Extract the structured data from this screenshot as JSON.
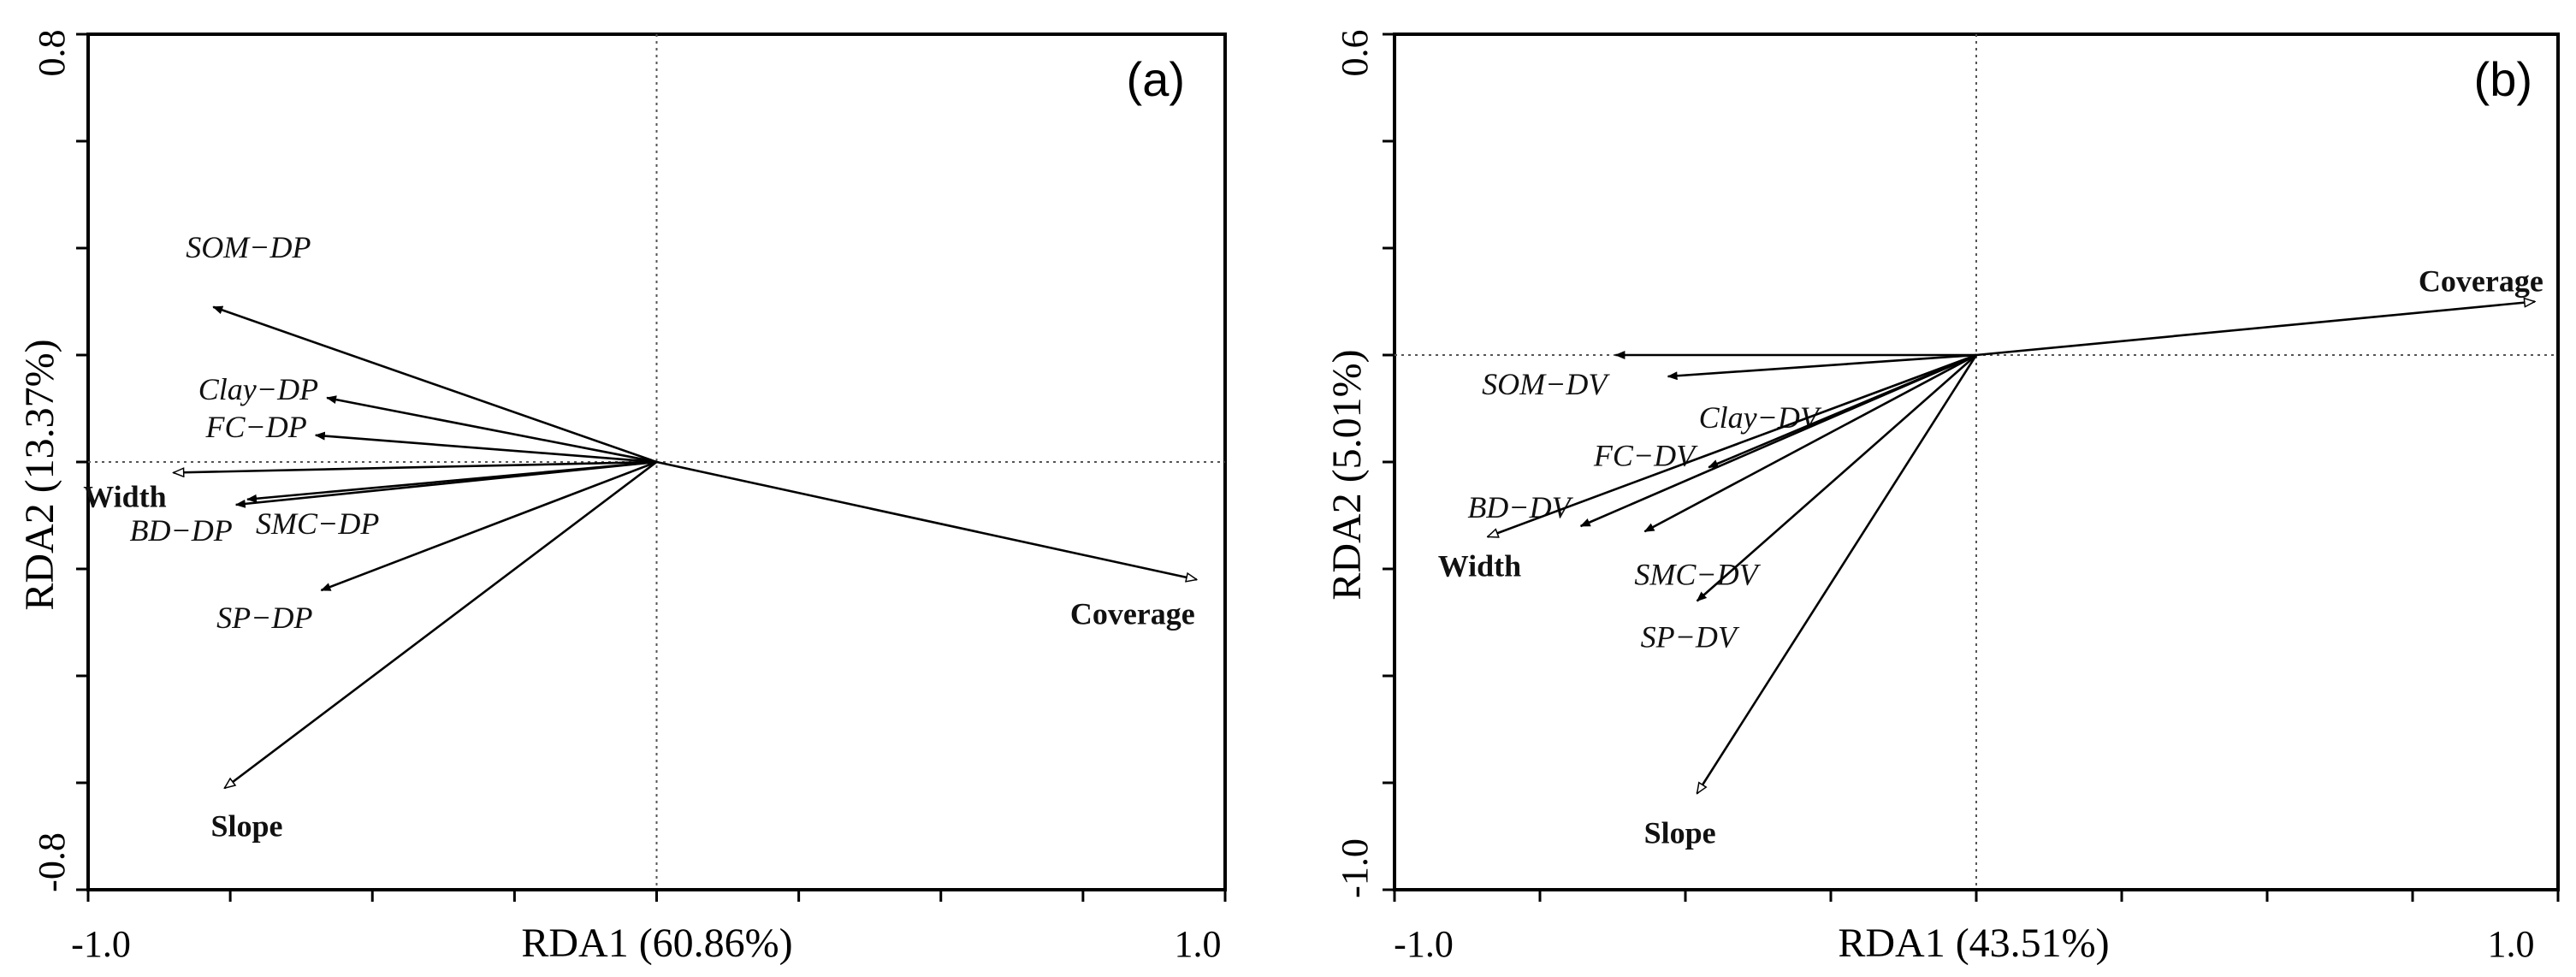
{
  "chart_data": [
    {
      "type": "scatter",
      "panel_label": "(a)",
      "xlabel": "RDA1 (60.86%)",
      "ylabel": "RDA2 (13.37%)",
      "xlim": [
        -1.0,
        1.0
      ],
      "ylim": [
        -0.8,
        0.8
      ],
      "x_tick_labels": [
        "-1.0",
        "1.0"
      ],
      "y_tick_labels": [
        "-0.8",
        "0.8"
      ],
      "grid": false,
      "origin_lines": true,
      "response_vectors": [
        {
          "label": "SOM−DP",
          "x": -0.78,
          "y": 0.29
        },
        {
          "label": "Clay−DP",
          "x": -0.58,
          "y": 0.12
        },
        {
          "label": "FC−DP",
          "x": -0.6,
          "y": 0.05
        },
        {
          "label": "BD−DP",
          "x": -0.74,
          "y": -0.08
        },
        {
          "label": "SMC−DP",
          "x": -0.72,
          "y": -0.07
        },
        {
          "label": "SP−DP",
          "x": -0.59,
          "y": -0.24
        }
      ],
      "explanatory_vectors": [
        {
          "label": "Width",
          "x": -0.85,
          "y": -0.02
        },
        {
          "label": "Coverage",
          "x": 0.95,
          "y": -0.22
        },
        {
          "label": "Slope",
          "x": -0.76,
          "y": -0.61
        }
      ]
    },
    {
      "type": "scatter",
      "panel_label": "(b)",
      "xlabel": "RDA1 (43.51%)",
      "ylabel": "RDA2 (5.01%)",
      "xlim": [
        -1.0,
        1.0
      ],
      "ylim": [
        -1.0,
        0.6
      ],
      "x_tick_labels": [
        "-1.0",
        "1.0"
      ],
      "y_tick_labels": [
        "-1.0",
        "0.6"
      ],
      "grid": false,
      "origin_lines": true,
      "response_vectors": [
        {
          "label": "SOM−DV",
          "x": -0.62,
          "y": 0.0
        },
        {
          "label": "Clay−DV",
          "x": -0.53,
          "y": -0.04
        },
        {
          "label": "FC−DV",
          "x": -0.46,
          "y": -0.21
        },
        {
          "label": "BD−DV",
          "x": -0.68,
          "y": -0.32
        },
        {
          "label": "SMC−DV",
          "x": -0.57,
          "y": -0.33
        },
        {
          "label": "SP−DV",
          "x": -0.48,
          "y": -0.46
        }
      ],
      "explanatory_vectors": [
        {
          "label": "Width",
          "x": -0.84,
          "y": -0.34
        },
        {
          "label": "Coverage",
          "x": 0.96,
          "y": 0.1
        },
        {
          "label": "Slope",
          "x": -0.48,
          "y": -0.82
        }
      ]
    }
  ]
}
